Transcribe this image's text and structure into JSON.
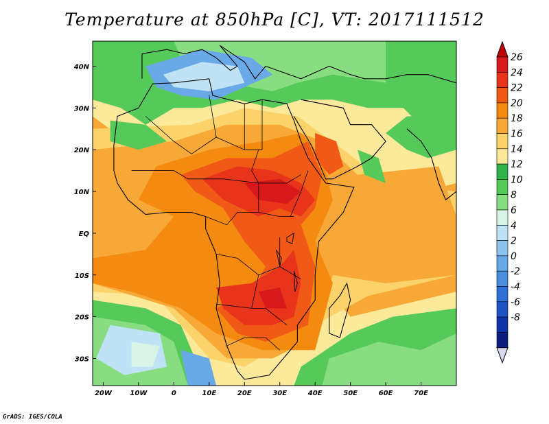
{
  "title": "Temperature at 850hPa [C], VT: 2017111512",
  "credit": "GrADS: IGES/COLA",
  "map": {
    "lon_range": [
      -23,
      80
    ],
    "lat_range": [
      -36.5,
      46
    ],
    "lon_ticks": [
      {
        "v": -20,
        "label": "20W"
      },
      {
        "v": -10,
        "label": "10W"
      },
      {
        "v": 0,
        "label": "0"
      },
      {
        "v": 10,
        "label": "10E"
      },
      {
        "v": 20,
        "label": "20E"
      },
      {
        "v": 30,
        "label": "30E"
      },
      {
        "v": 40,
        "label": "40E"
      },
      {
        "v": 50,
        "label": "50E"
      },
      {
        "v": 60,
        "label": "60E"
      },
      {
        "v": 70,
        "label": "70E"
      }
    ],
    "lat_ticks": [
      {
        "v": 40,
        "label": "40N"
      },
      {
        "v": 30,
        "label": "30N"
      },
      {
        "v": 20,
        "label": "20N"
      },
      {
        "v": 10,
        "label": "10N"
      },
      {
        "v": 0,
        "label": "EQ"
      },
      {
        "v": -10,
        "label": "10S"
      },
      {
        "v": -20,
        "label": "20S"
      },
      {
        "v": -30,
        "label": "30S"
      }
    ]
  },
  "colorbar": {
    "levels": [
      "26",
      "24",
      "22",
      "20",
      "18",
      "16",
      "14",
      "12",
      "10",
      "8",
      "6",
      "4",
      "2",
      "0",
      "-2",
      "-4",
      "-6",
      "-8"
    ],
    "colors": [
      "#d7191c",
      "#e8341a",
      "#f05a16",
      "#f48a10",
      "#f7a836",
      "#fbd36a",
      "#fde99a",
      "#2fb44a",
      "#55c95a",
      "#88dd80",
      "#d7f4e6",
      "#bfe3f5",
      "#8ec3ef",
      "#6aa9e8",
      "#4a8edf",
      "#2f6fd6",
      "#1f52c2",
      "#0f34a8",
      "#0a1f80"
    ],
    "overflow_top_color": "#c00000",
    "overflow_bottom_color": "#d8d8f0"
  },
  "fields": {
    "colors": {
      "cold_blue": "#6aa9e8",
      "light_blue": "#bfe3f5",
      "pale_cyan": "#d7f4e6",
      "green": "#55c95a",
      "light_green": "#88dd80",
      "pale_yellow": "#fde99a",
      "yellow": "#fbd36a",
      "orange_light": "#f7a836",
      "orange": "#f48a10",
      "orange_red": "#f05a16",
      "red": "#e8341a",
      "dark_red": "#d7191c"
    }
  }
}
